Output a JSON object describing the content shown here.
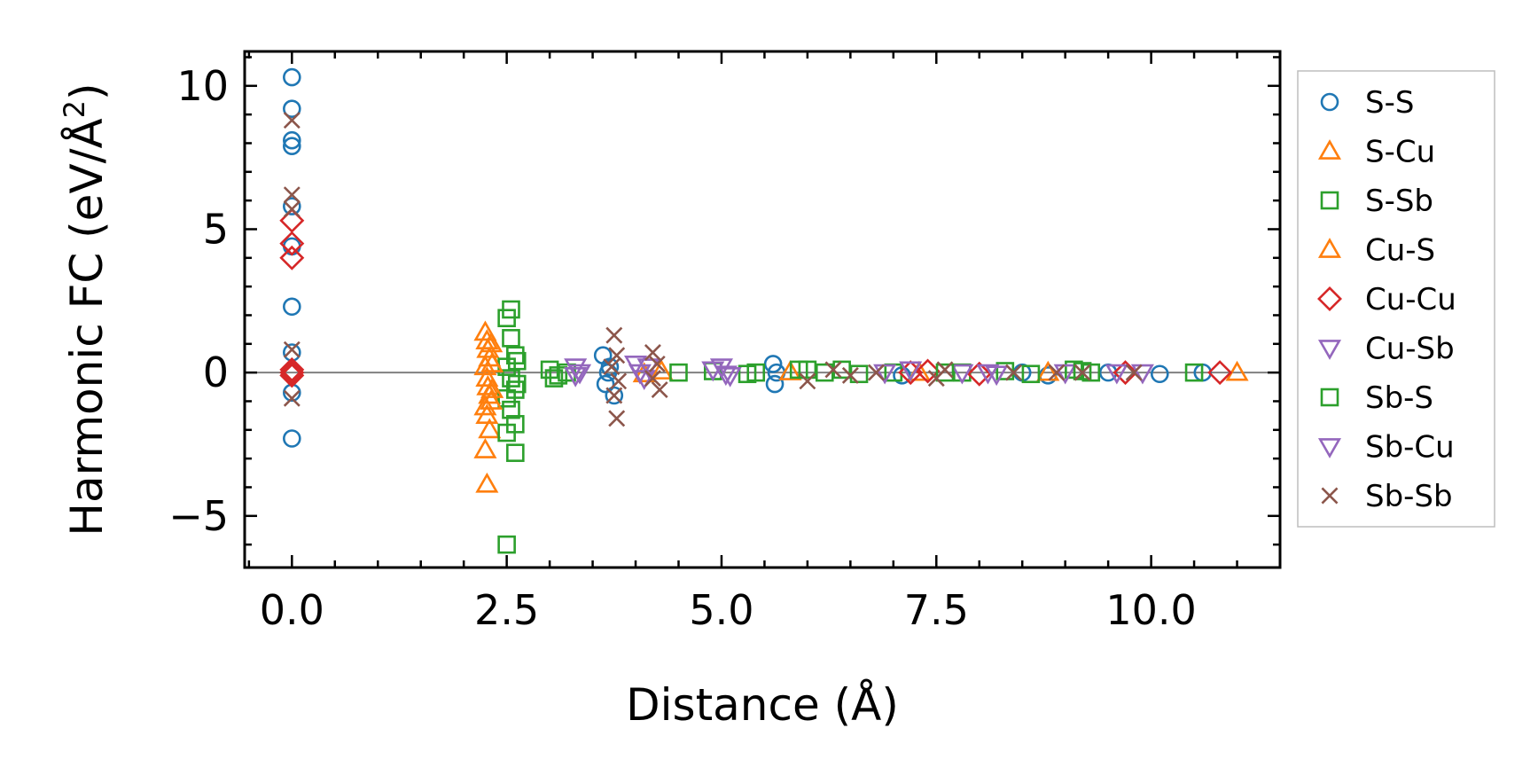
{
  "chart_data": {
    "type": "scatter",
    "title": "",
    "xlabel": "Distance (Å)",
    "ylabel_main": "Harmonic FC (eV/Å",
    "ylabel_sup": "2",
    "ylabel_close": ")",
    "xlim": [
      -0.55,
      11.5
    ],
    "ylim": [
      -6.8,
      11.2
    ],
    "xticks": [
      0.0,
      2.5,
      5.0,
      7.5,
      10.0
    ],
    "xtick_labels": [
      "0.0",
      "2.5",
      "5.0",
      "7.5",
      "10.0"
    ],
    "yticks": [
      -5,
      0,
      5,
      10
    ],
    "ytick_labels": [
      "−5",
      "0",
      "5",
      "10"
    ],
    "x_minor_step": 0.5,
    "y_minor_step": 1,
    "zero_line": 0,
    "legend_position": "right",
    "series": [
      {
        "name": "S-S",
        "marker": "circle",
        "color": "#1f77b4",
        "points": [
          [
            0,
            10.3
          ],
          [
            0,
            9.2
          ],
          [
            0,
            8.1
          ],
          [
            0,
            7.9
          ],
          [
            0,
            5.8
          ],
          [
            0,
            4.4
          ],
          [
            0,
            2.3
          ],
          [
            0,
            0.7
          ],
          [
            0,
            -0.7
          ],
          [
            0,
            -2.3
          ],
          [
            3.62,
            0.6
          ],
          [
            3.65,
            -0.4
          ],
          [
            3.7,
            0.2
          ],
          [
            3.75,
            -0.8
          ],
          [
            3.68,
            0.0
          ],
          [
            5.6,
            0.3
          ],
          [
            5.62,
            -0.4
          ],
          [
            5.64,
            0.0
          ],
          [
            7.1,
            -0.1
          ],
          [
            8.5,
            0.0
          ],
          [
            8.8,
            -0.1
          ],
          [
            9.5,
            0.0
          ],
          [
            10.1,
            -0.05
          ],
          [
            10.6,
            0.0
          ]
        ]
      },
      {
        "name": "S-Cu",
        "marker": "triangle-up",
        "color": "#ff7f0e",
        "points": [
          [
            2.25,
            1.4
          ],
          [
            2.27,
            1.1
          ],
          [
            2.28,
            0.8
          ],
          [
            2.3,
            0.5
          ],
          [
            2.25,
            0.2
          ],
          [
            2.27,
            -0.2
          ],
          [
            2.28,
            -0.5
          ],
          [
            2.3,
            -0.8
          ],
          [
            2.25,
            -1.2
          ],
          [
            2.27,
            -1.5
          ],
          [
            2.3,
            -2.0
          ],
          [
            2.25,
            -2.7
          ],
          [
            2.27,
            -3.9
          ],
          [
            4.1,
            -0.05
          ],
          [
            4.3,
            0.05
          ],
          [
            5.8,
            0.02
          ],
          [
            7.3,
            0.0
          ],
          [
            8.8,
            0.0
          ],
          [
            11.0,
            0.0
          ]
        ]
      },
      {
        "name": "S-Sb",
        "marker": "square",
        "color": "#2ca02c",
        "points": [
          [
            2.55,
            2.2
          ],
          [
            2.5,
            1.9
          ],
          [
            2.55,
            1.2
          ],
          [
            2.6,
            0.6
          ],
          [
            2.5,
            0.2
          ],
          [
            2.55,
            -0.2
          ],
          [
            2.6,
            -0.6
          ],
          [
            2.5,
            -0.9
          ],
          [
            2.55,
            -1.3
          ],
          [
            2.6,
            -1.8
          ],
          [
            2.5,
            -2.1
          ],
          [
            2.6,
            -2.8
          ],
          [
            2.5,
            -6.0
          ],
          [
            3.0,
            0.1
          ],
          [
            3.1,
            -0.1
          ],
          [
            3.2,
            0.0
          ],
          [
            4.5,
            0.0
          ],
          [
            4.9,
            0.05
          ],
          [
            5.3,
            -0.05
          ],
          [
            5.9,
            0.1
          ],
          [
            6.2,
            0.0
          ],
          [
            6.4,
            0.1
          ],
          [
            6.6,
            -0.05
          ],
          [
            7.0,
            0.0
          ],
          [
            7.8,
            0.0
          ],
          [
            8.3,
            0.05
          ],
          [
            8.6,
            -0.05
          ],
          [
            9.1,
            0.1
          ],
          [
            9.3,
            0.0
          ],
          [
            10.5,
            0.0
          ]
        ]
      },
      {
        "name": "Cu-S",
        "marker": "triangle-up",
        "color": "#ff7f0e",
        "points": [
          [
            2.32,
            1.0
          ],
          [
            2.33,
            0.3
          ],
          [
            2.33,
            -0.6
          ],
          [
            2.32,
            -1.0
          ]
        ]
      },
      {
        "name": "Cu-Cu",
        "marker": "diamond",
        "color": "#d62728",
        "points": [
          [
            0,
            5.3
          ],
          [
            0,
            4.5
          ],
          [
            0,
            4.0
          ],
          [
            0,
            0.0
          ],
          [
            0,
            0.1
          ],
          [
            0,
            -0.1
          ],
          [
            7.2,
            0.0
          ],
          [
            7.4,
            0.05
          ],
          [
            8.0,
            -0.05
          ],
          [
            9.7,
            0.0
          ],
          [
            10.8,
            0.0
          ]
        ]
      },
      {
        "name": "Cu-Sb",
        "marker": "triangle-down",
        "color": "#9467bd",
        "points": [
          [
            3.3,
            0.2
          ],
          [
            3.3,
            -0.1
          ],
          [
            4.0,
            0.3
          ],
          [
            4.05,
            0.0
          ],
          [
            4.1,
            -0.2
          ],
          [
            4.9,
            0.1
          ],
          [
            5.0,
            0.2
          ],
          [
            5.1,
            -0.1
          ],
          [
            6.9,
            0.0
          ],
          [
            7.2,
            0.1
          ],
          [
            7.8,
            0.0
          ],
          [
            8.2,
            -0.05
          ],
          [
            9.0,
            0.0
          ],
          [
            9.9,
            0.0
          ]
        ]
      },
      {
        "name": "Sb-S",
        "marker": "square",
        "color": "#2ca02c",
        "points": [
          [
            2.62,
            0.4
          ],
          [
            2.62,
            -0.4
          ],
          [
            3.05,
            -0.2
          ],
          [
            5.4,
            0.0
          ],
          [
            6.0,
            0.1
          ],
          [
            7.6,
            0.0
          ],
          [
            9.2,
            0.05
          ]
        ]
      },
      {
        "name": "Sb-Cu",
        "marker": "triangle-down",
        "color": "#9467bd",
        "points": [
          [
            3.35,
            0.0
          ],
          [
            4.15,
            0.2
          ],
          [
            5.05,
            -0.05
          ],
          [
            8.1,
            0.0
          ],
          [
            9.6,
            0.0
          ]
        ]
      },
      {
        "name": "Sb-Sb",
        "marker": "x",
        "color": "#8c564b",
        "points": [
          [
            0,
            8.8
          ],
          [
            0,
            6.2
          ],
          [
            0,
            5.7
          ],
          [
            0,
            0.8
          ],
          [
            0,
            -0.9
          ],
          [
            3.75,
            1.3
          ],
          [
            3.78,
            0.6
          ],
          [
            3.72,
            0.2
          ],
          [
            3.8,
            -0.3
          ],
          [
            3.75,
            -0.8
          ],
          [
            3.78,
            -1.6
          ],
          [
            4.2,
            0.7
          ],
          [
            4.25,
            0.3
          ],
          [
            4.2,
            -0.2
          ],
          [
            4.28,
            -0.6
          ],
          [
            6.0,
            -0.3
          ],
          [
            6.3,
            0.1
          ],
          [
            6.5,
            -0.1
          ],
          [
            6.8,
            0.0
          ],
          [
            7.5,
            -0.2
          ],
          [
            7.6,
            0.1
          ],
          [
            8.4,
            0.0
          ],
          [
            8.9,
            0.0
          ],
          [
            9.2,
            0.0
          ],
          [
            9.8,
            0.0
          ]
        ]
      }
    ]
  }
}
